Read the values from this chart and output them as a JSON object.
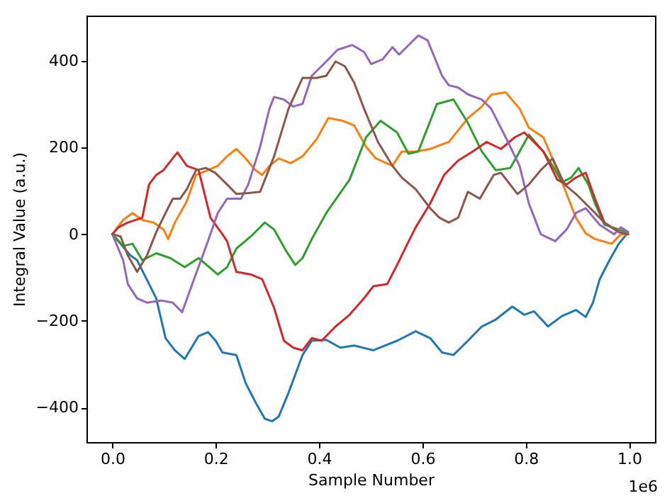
{
  "chart_data": {
    "type": "line",
    "xlabel": "Sample Number",
    "ylabel": "Integral Value (a.u.)",
    "xlim": [
      -0.05,
      1.05
    ],
    "ylim": [
      -480,
      505
    ],
    "xticks": [
      {
        "value": 0,
        "label": "0.0"
      },
      0.2,
      0.4,
      0.6,
      0.8,
      {
        "value": 1,
        "label": "1.0"
      }
    ],
    "yticks": [
      -400,
      -200,
      0,
      200,
      400
    ],
    "grid": false,
    "marker": "none",
    "line_style": "solid",
    "annotations": [
      "1e6"
    ],
    "series": [
      {
        "color": "#1f77b4",
        "x": [
          0,
          0.035,
          0.048,
          0.085,
          0.103,
          0.121,
          0.14,
          0.167,
          0.185,
          0.2,
          0.213,
          0.24,
          0.258,
          0.277,
          0.295,
          0.309,
          0.322,
          0.341,
          0.368,
          0.386,
          0.414,
          0.441,
          0.468,
          0.505,
          0.551,
          0.587,
          0.615,
          0.638,
          0.66,
          0.688,
          0.715,
          0.742,
          0.774,
          0.797,
          0.816,
          0.843,
          0.87,
          0.897,
          0.916,
          0.93,
          0.943,
          0.962,
          0.98,
          0.995
        ],
        "values": [
          0,
          -49,
          -60,
          -148,
          -240,
          -268,
          -288,
          -235,
          -226,
          -246,
          -273,
          -279,
          -344,
          -388,
          -426,
          -432,
          -421,
          -366,
          -279,
          -246,
          -244,
          -262,
          -257,
          -268,
          -246,
          -224,
          -240,
          -273,
          -279,
          -246,
          -213,
          -197,
          -167,
          -186,
          -178,
          -213,
          -189,
          -175,
          -191,
          -158,
          -104,
          -60,
          -22,
          0
        ]
      },
      {
        "color": "#ff7f0e",
        "x": [
          0,
          0.021,
          0.039,
          0.058,
          0.08,
          0.099,
          0.108,
          0.121,
          0.144,
          0.162,
          0.185,
          0.204,
          0.222,
          0.24,
          0.258,
          0.277,
          0.29,
          0.304,
          0.322,
          0.345,
          0.368,
          0.395,
          0.418,
          0.446,
          0.468,
          0.491,
          0.51,
          0.542,
          0.56,
          0.587,
          0.615,
          0.651,
          0.688,
          0.715,
          0.733,
          0.761,
          0.788,
          0.806,
          0.834,
          0.861,
          0.879,
          0.897,
          0.916,
          0.934,
          0.966,
          0.984,
          0.998
        ],
        "values": [
          0,
          33,
          49,
          33,
          27,
          11,
          -11,
          27,
          76,
          137,
          148,
          158,
          180,
          197,
          175,
          148,
          137,
          158,
          175,
          164,
          180,
          219,
          268,
          262,
          251,
          202,
          175,
          158,
          191,
          191,
          197,
          213,
          268,
          295,
          322,
          328,
          290,
          246,
          224,
          148,
          93,
          38,
          2,
          -11,
          -22,
          0,
          0
        ]
      },
      {
        "color": "#2ca02c",
        "x": [
          0,
          0.021,
          0.039,
          0.058,
          0.085,
          0.112,
          0.14,
          0.167,
          0.204,
          0.222,
          0.24,
          0.268,
          0.295,
          0.313,
          0.336,
          0.354,
          0.368,
          0.386,
          0.414,
          0.459,
          0.491,
          0.519,
          0.551,
          0.573,
          0.592,
          0.628,
          0.66,
          0.688,
          0.715,
          0.742,
          0.77,
          0.788,
          0.806,
          0.834,
          0.852,
          0.87,
          0.888,
          0.902,
          0.921,
          0.934,
          0.952,
          0.98,
          0.998
        ],
        "values": [
          0,
          -27,
          -22,
          -60,
          -44,
          -55,
          -76,
          -55,
          -93,
          -76,
          -33,
          -5,
          27,
          11,
          -38,
          -71,
          -55,
          -11,
          49,
          126,
          224,
          262,
          235,
          186,
          191,
          301,
          311,
          257,
          191,
          148,
          153,
          191,
          230,
          191,
          158,
          120,
          131,
          153,
          115,
          71,
          22,
          11,
          5
        ]
      },
      {
        "color": "#d62728",
        "x": [
          0,
          0.012,
          0.03,
          0.058,
          0.071,
          0.085,
          0.099,
          0.126,
          0.144,
          0.167,
          0.19,
          0.213,
          0.222,
          0.24,
          0.268,
          0.29,
          0.313,
          0.332,
          0.35,
          0.368,
          0.386,
          0.405,
          0.432,
          0.459,
          0.487,
          0.505,
          0.532,
          0.551,
          0.569,
          0.587,
          0.615,
          0.642,
          0.669,
          0.697,
          0.724,
          0.752,
          0.779,
          0.797,
          0.816,
          0.834,
          0.861,
          0.879,
          0.897,
          0.916,
          0.934,
          0.952,
          0.98,
          0.998
        ],
        "values": [
          0,
          16,
          27,
          38,
          115,
          137,
          148,
          189,
          158,
          148,
          38,
          0,
          -16,
          -87,
          -93,
          -104,
          -170,
          -246,
          -262,
          -268,
          -240,
          -246,
          -213,
          -186,
          -148,
          -120,
          -115,
          -71,
          -27,
          16,
          71,
          137,
          170,
          191,
          213,
          197,
          224,
          235,
          213,
          191,
          126,
          115,
          131,
          142,
          82,
          27,
          5,
          0
        ]
      },
      {
        "color": "#9467bd",
        "x": [
          0,
          0.021,
          0.03,
          0.048,
          0.067,
          0.094,
          0.117,
          0.135,
          0.158,
          0.185,
          0.204,
          0.222,
          0.249,
          0.263,
          0.286,
          0.304,
          0.313,
          0.332,
          0.35,
          0.368,
          0.386,
          0.414,
          0.436,
          0.464,
          0.487,
          0.501,
          0.523,
          0.542,
          0.555,
          0.592,
          0.61,
          0.638,
          0.651,
          0.669,
          0.688,
          0.715,
          0.733,
          0.761,
          0.788,
          0.806,
          0.829,
          0.857,
          0.879,
          0.897,
          0.916,
          0.943,
          0.971,
          0.984,
          0.998
        ],
        "values": [
          0,
          -60,
          -115,
          -148,
          -158,
          -153,
          -158,
          -180,
          -104,
          -16,
          49,
          82,
          82,
          115,
          202,
          290,
          317,
          311,
          295,
          301,
          366,
          399,
          426,
          437,
          421,
          393,
          404,
          432,
          415,
          459,
          448,
          366,
          344,
          339,
          323,
          311,
          290,
          224,
          158,
          71,
          0,
          -16,
          11,
          49,
          60,
          22,
          0,
          16,
          5
        ]
      },
      {
        "color": "#8c564b",
        "x": [
          0,
          0.016,
          0.03,
          0.048,
          0.067,
          0.085,
          0.103,
          0.117,
          0.131,
          0.144,
          0.162,
          0.181,
          0.199,
          0.222,
          0.24,
          0.263,
          0.286,
          0.313,
          0.341,
          0.368,
          0.395,
          0.414,
          0.432,
          0.45,
          0.468,
          0.487,
          0.514,
          0.542,
          0.56,
          0.587,
          0.615,
          0.633,
          0.651,
          0.669,
          0.688,
          0.711,
          0.738,
          0.752,
          0.784,
          0.806,
          0.829,
          0.852,
          0.875,
          0.897,
          0.925,
          0.952,
          0.98,
          0.998
        ],
        "values": [
          0,
          -5,
          -49,
          -87,
          -49,
          5,
          49,
          82,
          82,
          104,
          148,
          153,
          142,
          115,
          93,
          95,
          98,
          180,
          290,
          361,
          361,
          366,
          399,
          388,
          350,
          290,
          213,
          158,
          131,
          104,
          60,
          38,
          27,
          38,
          98,
          82,
          137,
          142,
          93,
          115,
          148,
          175,
          115,
          93,
          60,
          27,
          5,
          0
        ]
      }
    ]
  }
}
